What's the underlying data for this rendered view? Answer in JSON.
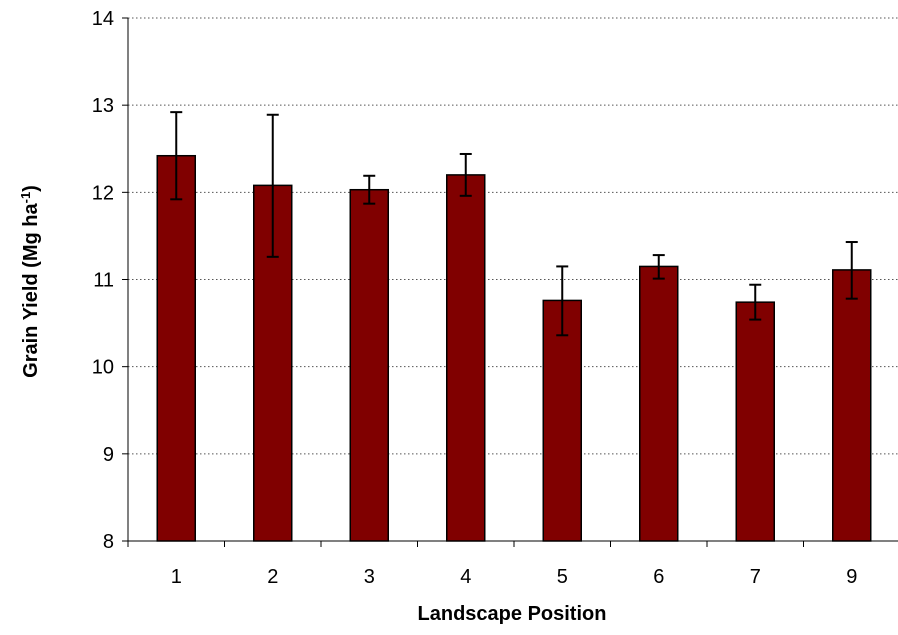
{
  "chart_data": {
    "type": "bar",
    "xlabel": "Landscape Position",
    "ylabel": {
      "main": "Grain Yield (Mg ha",
      "superscript": "-1",
      "close": ")"
    },
    "categories": [
      "1",
      "2",
      "3",
      "4",
      "5",
      "6",
      "7",
      "9"
    ],
    "series": [
      {
        "values": [
          12.42,
          12.08,
          12.03,
          12.2,
          10.76,
          11.15,
          10.74,
          11.11
        ],
        "error_low": [
          11.92,
          11.26,
          11.87,
          11.96,
          10.36,
          11.01,
          10.54,
          10.78
        ],
        "error_high": [
          12.92,
          12.89,
          12.19,
          12.44,
          11.15,
          11.28,
          10.94,
          11.43
        ],
        "color": "#800000"
      }
    ],
    "ylim": [
      8,
      14
    ],
    "yticks": [
      "8",
      "9",
      "10",
      "11",
      "12",
      "13",
      "14"
    ],
    "grid": true,
    "legend": "none"
  }
}
